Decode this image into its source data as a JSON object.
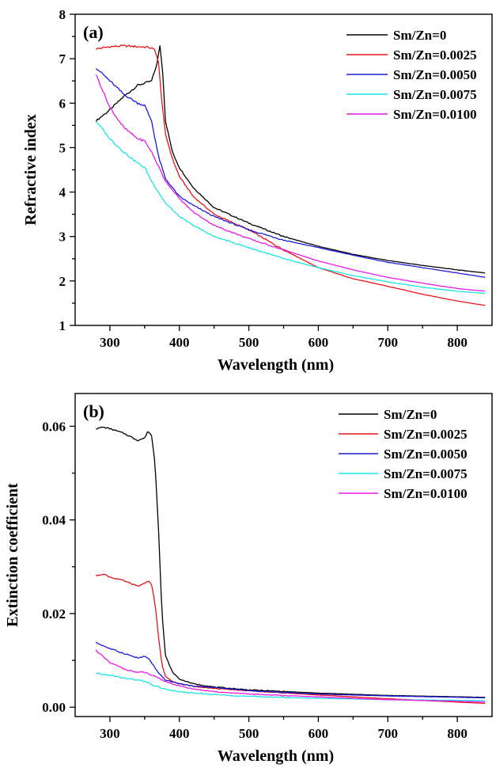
{
  "colors": {
    "Sm/Zn=0": "#000000",
    "Sm/Zn=0.0025": "#e8141b",
    "Sm/Zn=0.0050": "#1b1bd6",
    "Sm/Zn=0.0075": "#19e3e3",
    "Sm/Zn=0.0100": "#e61be6"
  },
  "chart_data": [
    {
      "type": "line",
      "panel_label": "(a)",
      "xlabel": "Wavelength (nm)",
      "ylabel": "Refractive index",
      "xlim": [
        250,
        850
      ],
      "ylim": [
        1,
        8
      ],
      "xticks": [
        300,
        400,
        500,
        600,
        700,
        800
      ],
      "yticks": [
        1,
        2,
        3,
        4,
        5,
        6,
        7,
        8
      ],
      "ytick_labels": [
        "1",
        "2",
        "3",
        "4",
        "5",
        "6",
        "7",
        "8"
      ],
      "legend_position": "top-right",
      "series": [
        {
          "name": "Sm/Zn=0",
          "x": [
            280,
            300,
            320,
            340,
            360,
            368,
            372,
            376,
            380,
            390,
            400,
            420,
            450,
            500,
            550,
            600,
            650,
            700,
            750,
            800,
            840
          ],
          "y": [
            5.6,
            5.85,
            6.15,
            6.4,
            6.5,
            6.9,
            7.3,
            6.7,
            5.6,
            4.9,
            4.55,
            4.1,
            3.65,
            3.3,
            3.0,
            2.78,
            2.6,
            2.46,
            2.35,
            2.25,
            2.18
          ]
        },
        {
          "name": "Sm/Zn=0.0025",
          "x": [
            280,
            300,
            320,
            340,
            355,
            365,
            370,
            375,
            380,
            390,
            400,
            420,
            450,
            500,
            550,
            600,
            650,
            700,
            750,
            800,
            840
          ],
          "y": [
            7.22,
            7.27,
            7.29,
            7.27,
            7.26,
            7.2,
            6.9,
            6.0,
            5.3,
            4.75,
            4.35,
            3.9,
            3.5,
            3.15,
            2.7,
            2.3,
            2.05,
            1.88,
            1.7,
            1.55,
            1.45
          ]
        },
        {
          "name": "Sm/Zn=0.0050",
          "x": [
            280,
            300,
            320,
            340,
            350,
            360,
            370,
            380,
            400,
            420,
            450,
            500,
            550,
            600,
            650,
            700,
            750,
            800,
            840
          ],
          "y": [
            6.8,
            6.5,
            6.2,
            6.0,
            5.95,
            5.6,
            4.8,
            4.3,
            3.9,
            3.7,
            3.45,
            3.15,
            2.92,
            2.75,
            2.58,
            2.42,
            2.3,
            2.18,
            2.08
          ]
        },
        {
          "name": "Sm/Zn=0.0075",
          "x": [
            280,
            300,
            320,
            340,
            350,
            360,
            380,
            400,
            420,
            450,
            500,
            550,
            600,
            650,
            700,
            750,
            800,
            840
          ],
          "y": [
            5.6,
            5.2,
            4.9,
            4.65,
            4.55,
            4.25,
            3.75,
            3.45,
            3.25,
            3.0,
            2.75,
            2.5,
            2.3,
            2.12,
            1.98,
            1.86,
            1.77,
            1.72
          ]
        },
        {
          "name": "Sm/Zn=0.0100",
          "x": [
            280,
            300,
            320,
            340,
            350,
            360,
            380,
            400,
            420,
            450,
            500,
            550,
            600,
            650,
            700,
            750,
            800,
            840
          ],
          "y": [
            6.65,
            5.9,
            5.45,
            5.2,
            5.15,
            4.9,
            4.25,
            3.85,
            3.55,
            3.25,
            2.95,
            2.7,
            2.45,
            2.25,
            2.08,
            1.95,
            1.83,
            1.77
          ]
        }
      ]
    },
    {
      "type": "line",
      "panel_label": "(b)",
      "xlabel": "Wavelength (nm)",
      "ylabel": "Extinction coefficient",
      "xlim": [
        250,
        850
      ],
      "ylim": [
        -0.002,
        0.067
      ],
      "xticks": [
        300,
        400,
        500,
        600,
        700,
        800
      ],
      "yticks": [
        0.0,
        0.02,
        0.04,
        0.06
      ],
      "ytick_labels": [
        "0.00",
        "0.02",
        "0.04",
        "0.06"
      ],
      "legend_position": "top-right",
      "series": [
        {
          "name": "Sm/Zn=0",
          "x": [
            280,
            290,
            300,
            320,
            340,
            350,
            355,
            360,
            365,
            370,
            375,
            380,
            390,
            400,
            420,
            450,
            500,
            600,
            700,
            840
          ],
          "y": [
            0.0595,
            0.0598,
            0.0595,
            0.0585,
            0.057,
            0.0575,
            0.059,
            0.058,
            0.052,
            0.038,
            0.02,
            0.011,
            0.0075,
            0.006,
            0.005,
            0.0043,
            0.0037,
            0.003,
            0.0025,
            0.0021
          ]
        },
        {
          "name": "Sm/Zn=0.0025",
          "x": [
            280,
            290,
            300,
            320,
            340,
            350,
            355,
            360,
            365,
            370,
            375,
            380,
            390,
            400,
            420,
            450,
            500,
            600,
            700,
            840
          ],
          "y": [
            0.028,
            0.0285,
            0.0278,
            0.027,
            0.0258,
            0.0265,
            0.027,
            0.0262,
            0.022,
            0.015,
            0.009,
            0.0065,
            0.0055,
            0.005,
            0.0045,
            0.004,
            0.0035,
            0.0026,
            0.0018,
            0.0008
          ]
        },
        {
          "name": "Sm/Zn=0.0050",
          "x": [
            280,
            300,
            320,
            340,
            350,
            355,
            360,
            370,
            380,
            400,
            420,
            450,
            500,
            600,
            700,
            840
          ],
          "y": [
            0.0138,
            0.0125,
            0.0115,
            0.0105,
            0.0108,
            0.0105,
            0.0095,
            0.0072,
            0.0058,
            0.005,
            0.0045,
            0.0042,
            0.0035,
            0.0028,
            0.0024,
            0.002
          ]
        },
        {
          "name": "Sm/Zn=0.0075",
          "x": [
            280,
            300,
            320,
            340,
            350,
            360,
            380,
            400,
            420,
            450,
            500,
            600,
            700,
            840
          ],
          "y": [
            0.0072,
            0.0068,
            0.0062,
            0.0058,
            0.0055,
            0.0048,
            0.0038,
            0.0033,
            0.003,
            0.0027,
            0.0023,
            0.0019,
            0.0016,
            0.0014
          ]
        },
        {
          "name": "Sm/Zn=0.0100",
          "x": [
            280,
            290,
            300,
            320,
            340,
            350,
            360,
            380,
            400,
            420,
            450,
            500,
            600,
            700,
            840
          ],
          "y": [
            0.0122,
            0.0108,
            0.0095,
            0.0082,
            0.0074,
            0.0075,
            0.0068,
            0.0055,
            0.0045,
            0.0039,
            0.0033,
            0.0028,
            0.0022,
            0.0016,
            0.0011
          ]
        }
      ]
    }
  ]
}
